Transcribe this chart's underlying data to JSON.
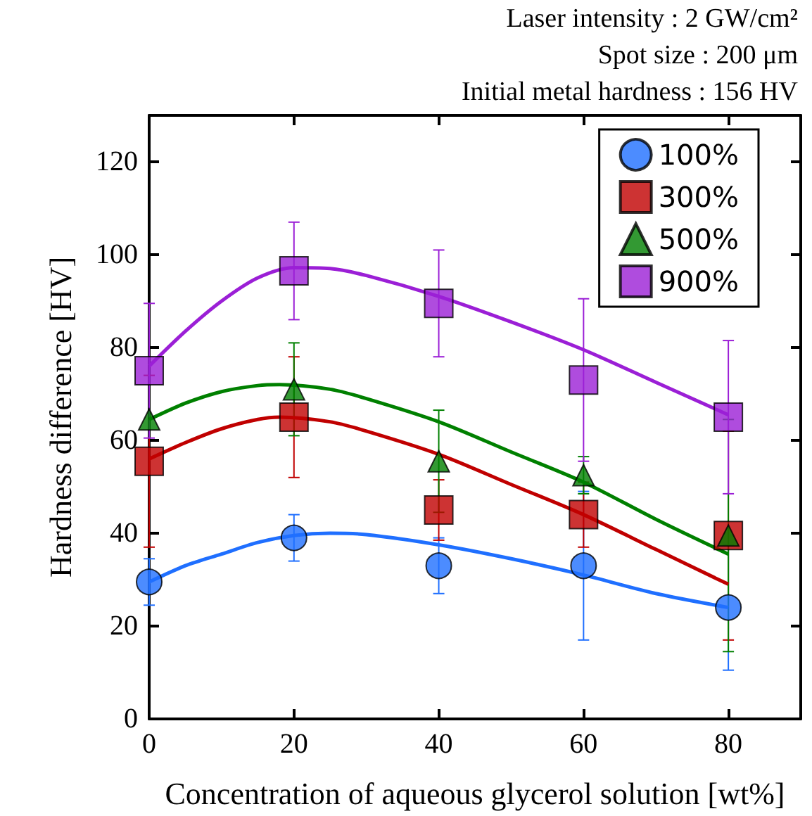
{
  "chart_data": {
    "type": "scatter",
    "xlabel": "Concentration of aqueous glycerol solution [wt%]",
    "ylabel": "Hardness difference [HV]",
    "annotations": [
      "Laser intensity : 2 GW/cm²",
      "Spot size : 200 μm",
      "Initial metal hardness : 156 HV"
    ],
    "xlim": [
      0,
      90
    ],
    "xticks": [
      0,
      20,
      40,
      60,
      80
    ],
    "ylim": [
      0,
      130
    ],
    "yticks": [
      0,
      20,
      40,
      60,
      80,
      100,
      120
    ],
    "grid": false,
    "legend": "top right",
    "series": [
      {
        "name": "100%",
        "color": "#1f6fff",
        "marker": "circle",
        "x": [
          0,
          20,
          40,
          60,
          80
        ],
        "values": [
          29.5,
          39,
          33,
          33,
          24
        ],
        "errors": [
          5,
          5,
          6,
          16,
          13.5
        ]
      },
      {
        "name": "300%",
        "color": "#c00000",
        "marker": "square",
        "x": [
          0,
          20,
          40,
          60,
          80
        ],
        "values": [
          55.5,
          65,
          45,
          44,
          39.5
        ],
        "errors": [
          18.5,
          13,
          6.5,
          7,
          22.5
        ]
      },
      {
        "name": "500%",
        "color": "#008000",
        "marker": "triangle",
        "x": [
          0,
          20,
          40,
          60,
          80
        ],
        "values": [
          64.5,
          71,
          55.5,
          52.5,
          39.5
        ],
        "errors": [
          null,
          10,
          11,
          4,
          25
        ]
      },
      {
        "name": "900%",
        "color": "#9b1fd6",
        "marker": "square",
        "x": [
          0,
          20,
          40,
          60,
          80
        ],
        "values": [
          75,
          96.5,
          89.5,
          73,
          65
        ],
        "errors": [
          14.5,
          10.5,
          11.5,
          17.5,
          16.5
        ]
      },
      {
        "type": "line",
        "color": "#1f6fff",
        "marker": "none",
        "x": [
          0,
          5,
          10,
          15,
          20,
          25,
          30,
          40,
          50,
          60,
          70,
          80
        ],
        "values": [
          29.5,
          33,
          35.5,
          38,
          39.5,
          40,
          39.7,
          37.5,
          34.5,
          31,
          27,
          24
        ]
      },
      {
        "type": "line",
        "color": "#c00000",
        "marker": "none",
        "x": [
          0,
          5,
          10,
          15,
          18,
          25,
          30,
          40,
          50,
          60,
          70,
          80
        ],
        "values": [
          56,
          59.5,
          62.5,
          64.5,
          65,
          64,
          62,
          57,
          50.5,
          44,
          36.5,
          29
        ]
      },
      {
        "type": "line",
        "color": "#008000",
        "marker": "none",
        "x": [
          0,
          5,
          10,
          15,
          18,
          25,
          30,
          40,
          50,
          60,
          70,
          80
        ],
        "values": [
          64.5,
          68,
          70.5,
          71.8,
          72,
          71,
          69,
          64,
          57.5,
          51,
          43,
          35.5
        ]
      },
      {
        "type": "line",
        "color": "#9b1fd6",
        "marker": "none",
        "x": [
          0,
          5,
          10,
          15,
          20,
          25,
          30,
          40,
          50,
          60,
          70,
          80
        ],
        "values": [
          76,
          83.5,
          90,
          95,
          97.2,
          97,
          95.5,
          91,
          85.5,
          79.5,
          72.5,
          65.5
        ]
      }
    ]
  }
}
